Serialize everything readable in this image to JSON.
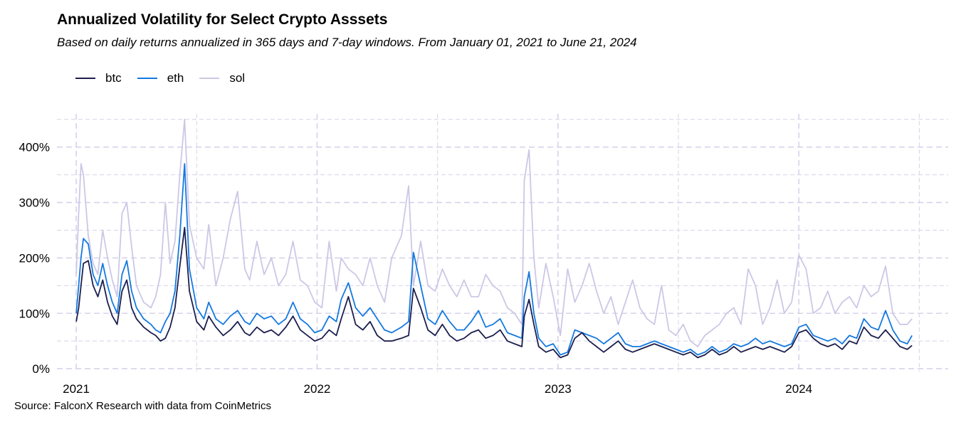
{
  "title": "Annualized Volatility for Select Crypto Asssets",
  "subtitle": "Based on daily returns annualized in 365 days and 7-day windows. From January 01, 2021 to June 21, 2024",
  "caption": "Source: FalconX Research with data from CoinMetrics",
  "chart_data": {
    "type": "line",
    "title": "Annualized Volatility for Select Crypto Asssets",
    "xlabel": "",
    "ylabel": "",
    "x_unit": "fractional year",
    "xlim": [
      2020.92,
      2024.62
    ],
    "ylim": [
      -5,
      460
    ],
    "y_ticks": [
      0,
      100,
      200,
      300,
      400
    ],
    "y_tick_labels": [
      "0%",
      "100%",
      "200%",
      "300%",
      "400%"
    ],
    "x_ticks": [
      2021,
      2022,
      2023,
      2024
    ],
    "x_tick_labels": [
      "2021",
      "2022",
      "2023",
      "2024"
    ],
    "grid": true,
    "legend_position": "top-left",
    "series": [
      {
        "name": "btc",
        "color": "#1c1f4e",
        "x": [
          2021.0,
          2021.01,
          2021.02,
          2021.03,
          2021.05,
          2021.07,
          2021.09,
          2021.11,
          2021.13,
          2021.15,
          2021.17,
          2021.19,
          2021.21,
          2021.23,
          2021.25,
          2021.28,
          2021.31,
          2021.33,
          2021.35,
          2021.37,
          2021.39,
          2021.41,
          2021.43,
          2021.45,
          2021.47,
          2021.5,
          2021.53,
          2021.55,
          2021.58,
          2021.61,
          2021.64,
          2021.67,
          2021.7,
          2021.72,
          2021.75,
          2021.78,
          2021.81,
          2021.84,
          2021.87,
          2021.9,
          2021.93,
          2021.96,
          2021.99,
          2022.02,
          2022.05,
          2022.08,
          2022.1,
          2022.13,
          2022.16,
          2022.19,
          2022.22,
          2022.25,
          2022.28,
          2022.31,
          2022.35,
          2022.38,
          2022.4,
          2022.43,
          2022.46,
          2022.49,
          2022.52,
          2022.55,
          2022.58,
          2022.61,
          2022.64,
          2022.67,
          2022.7,
          2022.73,
          2022.76,
          2022.79,
          2022.82,
          2022.85,
          2022.86,
          2022.88,
          2022.9,
          2022.92,
          2022.95,
          2022.98,
          2023.01,
          2023.04,
          2023.07,
          2023.1,
          2023.13,
          2023.16,
          2023.19,
          2023.22,
          2023.25,
          2023.28,
          2023.31,
          2023.34,
          2023.37,
          2023.4,
          2023.43,
          2023.46,
          2023.49,
          2023.52,
          2023.55,
          2023.58,
          2023.61,
          2023.64,
          2023.67,
          2023.7,
          2023.73,
          2023.76,
          2023.79,
          2023.82,
          2023.85,
          2023.88,
          2023.91,
          2023.94,
          2023.97,
          2024.0,
          2024.03,
          2024.06,
          2024.09,
          2024.12,
          2024.15,
          2024.18,
          2024.21,
          2024.24,
          2024.27,
          2024.3,
          2024.33,
          2024.36,
          2024.39,
          2024.42,
          2024.45,
          2024.47
        ],
        "values": [
          85,
          110,
          150,
          190,
          195,
          150,
          130,
          160,
          120,
          95,
          80,
          140,
          160,
          110,
          90,
          75,
          65,
          60,
          50,
          55,
          75,
          110,
          185,
          255,
          140,
          85,
          70,
          95,
          75,
          60,
          70,
          85,
          65,
          60,
          75,
          65,
          70,
          60,
          75,
          95,
          70,
          60,
          50,
          55,
          70,
          60,
          90,
          130,
          80,
          70,
          85,
          60,
          50,
          50,
          55,
          60,
          145,
          110,
          70,
          60,
          80,
          60,
          50,
          55,
          65,
          70,
          55,
          60,
          70,
          50,
          45,
          40,
          95,
          125,
          80,
          40,
          30,
          35,
          20,
          25,
          55,
          65,
          50,
          40,
          30,
          40,
          50,
          35,
          30,
          35,
          40,
          45,
          40,
          35,
          30,
          25,
          30,
          20,
          25,
          35,
          25,
          30,
          40,
          30,
          35,
          40,
          35,
          40,
          35,
          30,
          40,
          65,
          70,
          55,
          45,
          40,
          45,
          35,
          50,
          45,
          75,
          60,
          55,
          70,
          55,
          40,
          35,
          42
        ]
      },
      {
        "name": "eth",
        "color": "#1479e0",
        "x": [
          2021.0,
          2021.01,
          2021.02,
          2021.03,
          2021.05,
          2021.07,
          2021.09,
          2021.11,
          2021.13,
          2021.15,
          2021.17,
          2021.19,
          2021.21,
          2021.23,
          2021.25,
          2021.28,
          2021.31,
          2021.33,
          2021.35,
          2021.37,
          2021.39,
          2021.41,
          2021.43,
          2021.45,
          2021.47,
          2021.5,
          2021.53,
          2021.55,
          2021.58,
          2021.61,
          2021.64,
          2021.67,
          2021.7,
          2021.72,
          2021.75,
          2021.78,
          2021.81,
          2021.84,
          2021.87,
          2021.9,
          2021.93,
          2021.96,
          2021.99,
          2022.02,
          2022.05,
          2022.08,
          2022.1,
          2022.13,
          2022.16,
          2022.19,
          2022.22,
          2022.25,
          2022.28,
          2022.31,
          2022.35,
          2022.38,
          2022.4,
          2022.43,
          2022.46,
          2022.49,
          2022.52,
          2022.55,
          2022.58,
          2022.61,
          2022.64,
          2022.67,
          2022.7,
          2022.73,
          2022.76,
          2022.79,
          2022.82,
          2022.85,
          2022.86,
          2022.88,
          2022.9,
          2022.92,
          2022.95,
          2022.98,
          2023.01,
          2023.04,
          2023.07,
          2023.1,
          2023.13,
          2023.16,
          2023.19,
          2023.22,
          2023.25,
          2023.28,
          2023.31,
          2023.34,
          2023.37,
          2023.4,
          2023.43,
          2023.46,
          2023.49,
          2023.52,
          2023.55,
          2023.58,
          2023.61,
          2023.64,
          2023.67,
          2023.7,
          2023.73,
          2023.76,
          2023.79,
          2023.82,
          2023.85,
          2023.88,
          2023.91,
          2023.94,
          2023.97,
          2024.0,
          2024.03,
          2024.06,
          2024.09,
          2024.12,
          2024.15,
          2024.18,
          2024.21,
          2024.24,
          2024.27,
          2024.3,
          2024.33,
          2024.36,
          2024.39,
          2024.42,
          2024.45,
          2024.47
        ],
        "values": [
          100,
          150,
          200,
          235,
          225,
          170,
          150,
          190,
          150,
          120,
          100,
          170,
          195,
          140,
          110,
          90,
          80,
          70,
          65,
          85,
          100,
          140,
          240,
          370,
          180,
          110,
          90,
          120,
          90,
          80,
          95,
          105,
          85,
          80,
          100,
          90,
          95,
          80,
          90,
          120,
          90,
          80,
          65,
          70,
          95,
          85,
          125,
          155,
          110,
          95,
          110,
          90,
          70,
          65,
          75,
          85,
          210,
          150,
          90,
          80,
          105,
          85,
          70,
          70,
          85,
          105,
          75,
          80,
          90,
          65,
          60,
          55,
          130,
          175,
          100,
          55,
          40,
          45,
          25,
          30,
          70,
          65,
          60,
          55,
          45,
          55,
          65,
          45,
          40,
          40,
          45,
          50,
          45,
          40,
          35,
          30,
          35,
          25,
          30,
          40,
          30,
          35,
          45,
          40,
          45,
          55,
          45,
          50,
          45,
          40,
          45,
          75,
          80,
          60,
          55,
          50,
          55,
          45,
          60,
          55,
          90,
          75,
          70,
          105,
          70,
          50,
          45,
          60
        ]
      },
      {
        "name": "sol",
        "color": "#cdc7e6",
        "x": [
          2021.0,
          2021.01,
          2021.02,
          2021.03,
          2021.05,
          2021.07,
          2021.09,
          2021.11,
          2021.13,
          2021.15,
          2021.17,
          2021.19,
          2021.21,
          2021.23,
          2021.25,
          2021.28,
          2021.31,
          2021.33,
          2021.35,
          2021.37,
          2021.39,
          2021.41,
          2021.43,
          2021.45,
          2021.47,
          2021.5,
          2021.53,
          2021.55,
          2021.58,
          2021.61,
          2021.64,
          2021.67,
          2021.7,
          2021.72,
          2021.75,
          2021.78,
          2021.81,
          2021.84,
          2021.87,
          2021.9,
          2021.93,
          2021.96,
          2021.99,
          2022.02,
          2022.05,
          2022.08,
          2022.1,
          2022.13,
          2022.16,
          2022.19,
          2022.22,
          2022.25,
          2022.28,
          2022.31,
          2022.35,
          2022.38,
          2022.4,
          2022.43,
          2022.46,
          2022.49,
          2022.52,
          2022.55,
          2022.58,
          2022.61,
          2022.64,
          2022.67,
          2022.7,
          2022.73,
          2022.76,
          2022.79,
          2022.82,
          2022.85,
          2022.86,
          2022.88,
          2022.9,
          2022.92,
          2022.95,
          2022.98,
          2023.01,
          2023.04,
          2023.07,
          2023.1,
          2023.13,
          2023.16,
          2023.19,
          2023.22,
          2023.25,
          2023.28,
          2023.31,
          2023.34,
          2023.37,
          2023.4,
          2023.43,
          2023.46,
          2023.49,
          2023.52,
          2023.55,
          2023.58,
          2023.61,
          2023.64,
          2023.67,
          2023.7,
          2023.73,
          2023.76,
          2023.79,
          2023.82,
          2023.85,
          2023.88,
          2023.91,
          2023.94,
          2023.97,
          2024.0,
          2024.03,
          2024.06,
          2024.09,
          2024.12,
          2024.15,
          2024.18,
          2024.21,
          2024.24,
          2024.27,
          2024.3,
          2024.33,
          2024.36,
          2024.39,
          2024.42,
          2024.45,
          2024.47
        ],
        "values": [
          170,
          280,
          370,
          350,
          240,
          190,
          170,
          250,
          200,
          160,
          130,
          280,
          300,
          220,
          150,
          120,
          110,
          130,
          170,
          300,
          190,
          230,
          350,
          450,
          260,
          200,
          180,
          260,
          150,
          200,
          270,
          320,
          180,
          160,
          230,
          170,
          200,
          150,
          170,
          230,
          160,
          150,
          120,
          110,
          230,
          140,
          200,
          180,
          170,
          150,
          200,
          150,
          120,
          200,
          240,
          330,
          150,
          230,
          150,
          140,
          180,
          150,
          130,
          160,
          130,
          130,
          170,
          150,
          140,
          110,
          100,
          80,
          340,
          395,
          200,
          110,
          190,
          130,
          60,
          180,
          120,
          150,
          190,
          140,
          100,
          130,
          80,
          120,
          160,
          110,
          90,
          80,
          150,
          70,
          60,
          80,
          50,
          40,
          60,
          70,
          80,
          100,
          110,
          80,
          180,
          150,
          80,
          110,
          160,
          100,
          120,
          205,
          180,
          100,
          110,
          140,
          100,
          120,
          130,
          110,
          150,
          130,
          140,
          185,
          100,
          80,
          80,
          90
        ]
      }
    ]
  }
}
